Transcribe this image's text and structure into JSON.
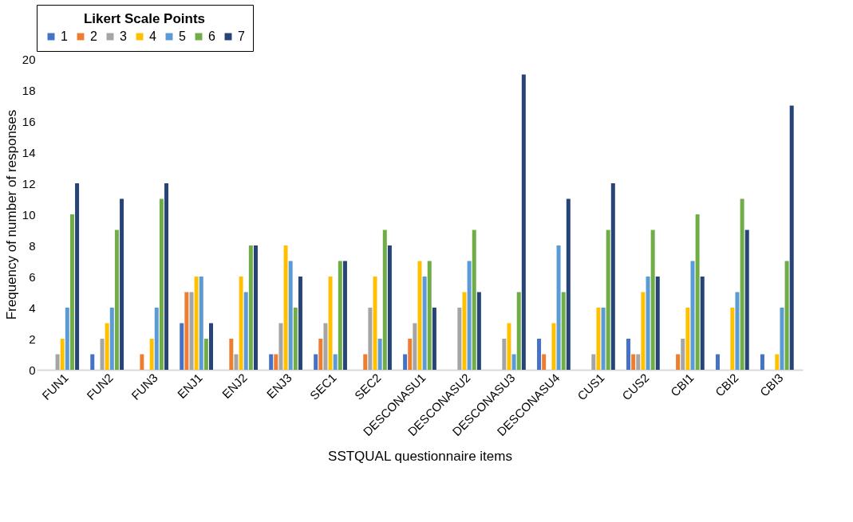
{
  "chart_data": {
    "type": "bar",
    "xlabel": "SSTQUAL questionnaire items",
    "ylabel": "Frequency of number of responses",
    "legend_title": "Likert Scale Points",
    "legend": "top",
    "categories": [
      "FUN1",
      "FUN2",
      "FUN3",
      "ENJ1",
      "ENJ2",
      "ENJ3",
      "SEC1",
      "SEC2",
      "DESCONASU1",
      "DESCONASU2",
      "DESCONASU3",
      "DESCONASU4",
      "CUS1",
      "CUS2",
      "CBI1",
      "CBI2",
      "CBI3"
    ],
    "ylim": [
      0,
      20
    ],
    "yticks": [
      0,
      2,
      4,
      6,
      8,
      10,
      12,
      14,
      16,
      18,
      20
    ],
    "grid": false,
    "series": [
      {
        "name": "1",
        "color": "#4472c4",
        "values": [
          0,
          1,
          0,
          3,
          0,
          1,
          1,
          0,
          1,
          0,
          0,
          2,
          0,
          2,
          0,
          1,
          1
        ]
      },
      {
        "name": "2",
        "color": "#ed7d31",
        "values": [
          0,
          0,
          1,
          5,
          2,
          1,
          2,
          1,
          2,
          0,
          0,
          1,
          0,
          1,
          1,
          0,
          0
        ]
      },
      {
        "name": "3",
        "color": "#a5a5a5",
        "values": [
          1,
          2,
          0,
          5,
          1,
          3,
          3,
          4,
          3,
          4,
          2,
          0,
          1,
          1,
          2,
          0,
          0
        ]
      },
      {
        "name": "4",
        "color": "#ffc000",
        "values": [
          2,
          3,
          2,
          6,
          6,
          8,
          6,
          6,
          7,
          5,
          3,
          3,
          4,
          5,
          4,
          4,
          1
        ]
      },
      {
        "name": "5",
        "color": "#5b9bd5",
        "values": [
          4,
          4,
          4,
          6,
          5,
          7,
          1,
          2,
          6,
          7,
          1,
          8,
          4,
          6,
          7,
          5,
          4
        ]
      },
      {
        "name": "6",
        "color": "#70ad47",
        "values": [
          10,
          9,
          11,
          2,
          8,
          4,
          7,
          9,
          7,
          9,
          5,
          5,
          9,
          9,
          10,
          11,
          7
        ]
      },
      {
        "name": "7",
        "color": "#264478",
        "values": [
          12,
          11,
          12,
          3,
          8,
          6,
          7,
          8,
          4,
          5,
          19,
          11,
          12,
          6,
          6,
          9,
          17
        ]
      }
    ]
  }
}
